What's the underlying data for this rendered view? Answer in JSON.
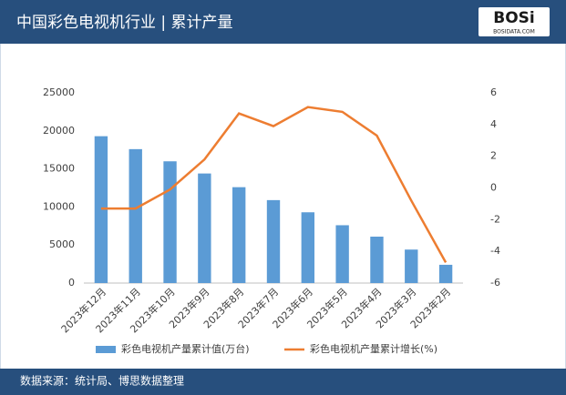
{
  "chart_data": {
    "type": "combo",
    "title": "中国彩色电视机行业 | 累计产量",
    "logo": {
      "text": "BOSi",
      "sub": "BOSIDATA.COM"
    },
    "source": "数据来源：统计局、博思数据整理",
    "categories": [
      "2023年12月",
      "2023年11月",
      "2023年10月",
      "2023年9月",
      "2023年8月",
      "2023年7月",
      "2023年6月",
      "2023年5月",
      "2023年4月",
      "2023年3月",
      "2023年2月"
    ],
    "series": [
      {
        "name": "彩色电视机产量累计值(万台)",
        "type": "bar",
        "color": "#5b9bd5",
        "values": [
          19300,
          17600,
          16000,
          14400,
          12600,
          10900,
          9300,
          7600,
          6100,
          4400,
          2400
        ]
      },
      {
        "name": "彩色电视机产量累计增长(%)",
        "type": "line",
        "axis": "y2",
        "color": "#ed7d31",
        "values": [
          -1.3,
          -1.3,
          -0.1,
          1.8,
          4.7,
          3.9,
          5.1,
          4.8,
          3.3,
          -0.8,
          -4.7
        ]
      }
    ],
    "ylim": [
      0,
      25000
    ],
    "yticks": [
      0,
      5000,
      10000,
      15000,
      20000,
      25000
    ],
    "y2lim": [
      -6,
      6
    ],
    "y2ticks": [
      -6,
      -4,
      -2,
      0,
      2,
      4,
      6
    ],
    "grid": false
  }
}
